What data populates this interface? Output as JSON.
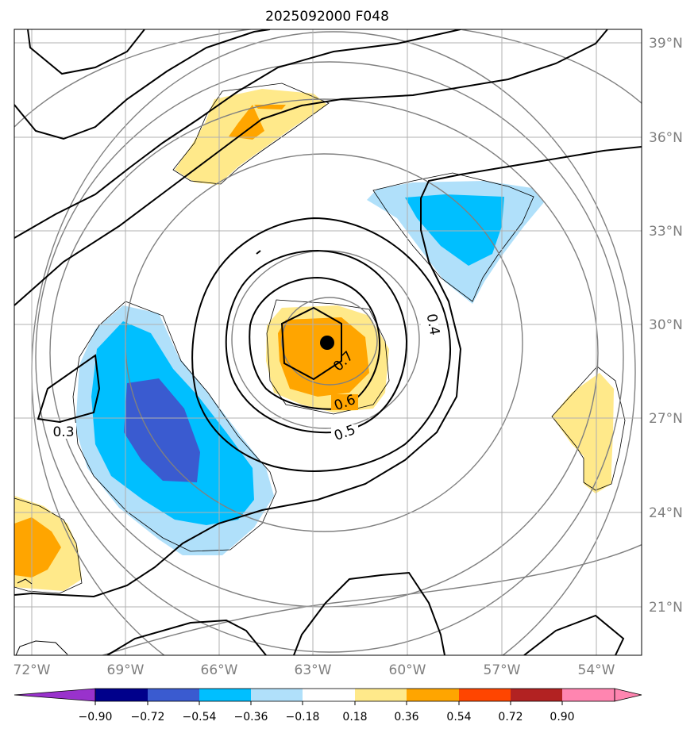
{
  "title": "2025092000 F048",
  "map": {
    "lat_labels": [
      "39°N",
      "36°N",
      "33°N",
      "30°N",
      "27°N",
      "24°N",
      "21°N"
    ],
    "lon_labels": [
      "72°W",
      "69°W",
      "66°W",
      "63°W",
      "60°W",
      "57°W",
      "54°W"
    ]
  },
  "contour_labels": [
    "0.3",
    "0.4",
    "0.5",
    "0.6",
    "0.7"
  ],
  "colorbar": {
    "ticks": [
      "−0.90",
      "−0.72",
      "−0.54",
      "−0.36",
      "−0.18",
      "0.18",
      "0.36",
      "0.54",
      "0.72",
      "0.90"
    ],
    "colors": [
      "#9932cc",
      "#00008b",
      "#3a5bd0",
      "#00bfff",
      "#b0e0fa",
      "#ffffff",
      "#ffe98a",
      "#ffa500",
      "#ff4500",
      "#b22222",
      "#ff85b0"
    ]
  },
  "center_marker": "storm-center"
}
